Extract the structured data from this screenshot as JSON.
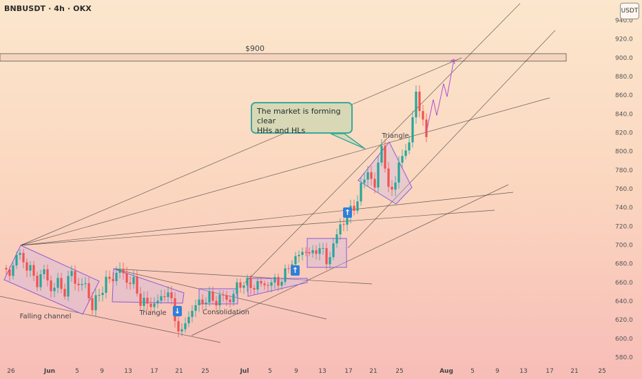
{
  "header": {
    "title": "BNBUSDT · 4h · OKX"
  },
  "currency_button": {
    "label": "USDT"
  },
  "callout": {
    "line1": "The market is forming clear",
    "line2": "HHs and HLs"
  },
  "labels": {
    "resistance": "$900",
    "falling_channel": "Falling channel",
    "triangle_1": "Triangle",
    "consolidation": "Consolidation",
    "triangle_2": "Triangle"
  },
  "icons": [
    "arrow-down-icon",
    "arrow-up-icon",
    "arrow-up-icon"
  ],
  "colors": {
    "bull": "#26a69a",
    "bear": "#ef5350",
    "pattern": "#8e5bd6",
    "projection": "#b24bd6"
  },
  "chart_data": {
    "type": "candlestick",
    "symbol": "BNBUSDT",
    "timeframe": "4h",
    "exchange": "OKX",
    "ylim": [
      574,
      945
    ],
    "y_ticks": [
      580,
      600,
      620,
      640,
      660,
      680,
      700,
      720,
      740,
      760,
      780,
      800,
      820,
      840,
      860,
      880,
      900,
      920,
      940
    ],
    "x_ticks": [
      "26",
      "Jun",
      "5",
      "9",
      "13",
      "17",
      "21",
      "25",
      "Jul",
      "5",
      "9",
      "13",
      "17",
      "21",
      "25",
      "Aug",
      "5",
      "9",
      "13",
      "17",
      "21",
      "25"
    ],
    "resistance_level": 900,
    "price_path": [
      {
        "x": 0,
        "y": 675
      },
      {
        "x": 2,
        "y": 668
      },
      {
        "x": 4,
        "y": 690
      },
      {
        "x": 6,
        "y": 683
      },
      {
        "x": 8,
        "y": 672
      },
      {
        "x": 10,
        "y": 660
      },
      {
        "x": 12,
        "y": 672
      },
      {
        "x": 14,
        "y": 652
      },
      {
        "x": 16,
        "y": 659
      },
      {
        "x": 18,
        "y": 650
      },
      {
        "x": 20,
        "y": 671
      },
      {
        "x": 22,
        "y": 655
      },
      {
        "x": 24,
        "y": 658
      },
      {
        "x": 26,
        "y": 632
      },
      {
        "x": 28,
        "y": 648
      },
      {
        "x": 30,
        "y": 660
      },
      {
        "x": 32,
        "y": 665
      },
      {
        "x": 34,
        "y": 673
      },
      {
        "x": 36,
        "y": 662
      },
      {
        "x": 38,
        "y": 659
      },
      {
        "x": 40,
        "y": 640
      },
      {
        "x": 42,
        "y": 636
      },
      {
        "x": 44,
        "y": 637
      },
      {
        "x": 46,
        "y": 642
      },
      {
        "x": 48,
        "y": 652
      },
      {
        "x": 50,
        "y": 620
      },
      {
        "x": 52,
        "y": 605
      },
      {
        "x": 54,
        "y": 625
      },
      {
        "x": 56,
        "y": 635
      },
      {
        "x": 58,
        "y": 640
      },
      {
        "x": 60,
        "y": 643
      },
      {
        "x": 62,
        "y": 640
      },
      {
        "x": 64,
        "y": 645
      },
      {
        "x": 66,
        "y": 640
      },
      {
        "x": 68,
        "y": 655
      },
      {
        "x": 70,
        "y": 660
      },
      {
        "x": 72,
        "y": 655
      },
      {
        "x": 74,
        "y": 658
      },
      {
        "x": 76,
        "y": 657
      },
      {
        "x": 78,
        "y": 660
      },
      {
        "x": 80,
        "y": 660
      },
      {
        "x": 82,
        "y": 668
      },
      {
        "x": 84,
        "y": 683
      },
      {
        "x": 86,
        "y": 688
      },
      {
        "x": 88,
        "y": 695
      },
      {
        "x": 90,
        "y": 688
      },
      {
        "x": 92,
        "y": 700
      },
      {
        "x": 94,
        "y": 680
      },
      {
        "x": 96,
        "y": 700
      },
      {
        "x": 98,
        "y": 720
      },
      {
        "x": 100,
        "y": 730
      },
      {
        "x": 102,
        "y": 740
      },
      {
        "x": 104,
        "y": 760
      },
      {
        "x": 106,
        "y": 780
      },
      {
        "x": 108,
        "y": 760
      },
      {
        "x": 110,
        "y": 810
      },
      {
        "x": 112,
        "y": 755
      },
      {
        "x": 114,
        "y": 770
      },
      {
        "x": 116,
        "y": 795
      },
      {
        "x": 118,
        "y": 810
      },
      {
        "x": 120,
        "y": 860
      },
      {
        "x": 122,
        "y": 835
      },
      {
        "x": 123,
        "y": 808
      }
    ],
    "projection": [
      {
        "x": 123,
        "y": 820
      },
      {
        "x": 125,
        "y": 855
      },
      {
        "x": 126,
        "y": 838
      },
      {
        "x": 128,
        "y": 872
      },
      {
        "x": 129,
        "y": 858
      },
      {
        "x": 131,
        "y": 898
      }
    ],
    "annotations": [
      {
        "text": "$900"
      },
      {
        "text": "Falling channel"
      },
      {
        "text": "Triangle"
      },
      {
        "text": "Consolidation"
      },
      {
        "text": "Triangle"
      },
      {
        "text": "The market is forming clear HHs and HLs"
      }
    ]
  }
}
